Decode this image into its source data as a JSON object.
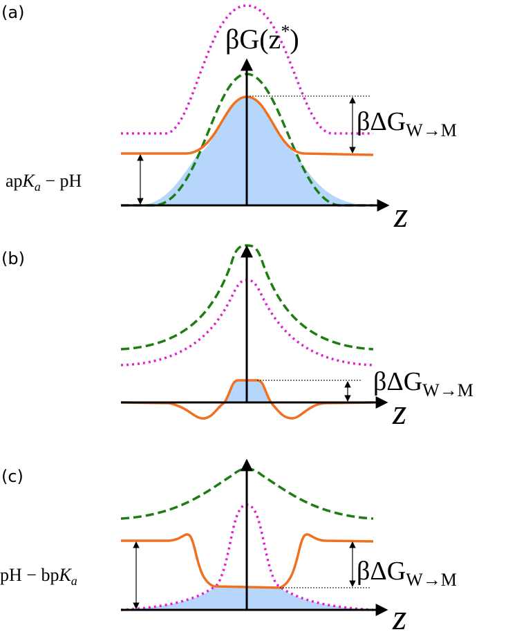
{
  "panels": [
    {
      "label": "(a)",
      "y_label": {
        "main": "βG(z",
        "sup": "*",
        "end": ")"
      },
      "x_label": "z",
      "delta": {
        "main": "βΔG",
        "sub": "W→M"
      },
      "side": {
        "pre": "ap",
        "main": "K",
        "sub": "a",
        "post": " − pH"
      }
    },
    {
      "label": "(b)",
      "x_label": "z",
      "delta": {
        "main": "βΔG",
        "sub": "W→M"
      }
    },
    {
      "label": "(c)",
      "x_label": "z",
      "delta": {
        "main": "βΔG",
        "sub": "W→M"
      },
      "side": {
        "pre": "pH − bp",
        "main": "K",
        "sub": "a"
      }
    }
  ]
}
